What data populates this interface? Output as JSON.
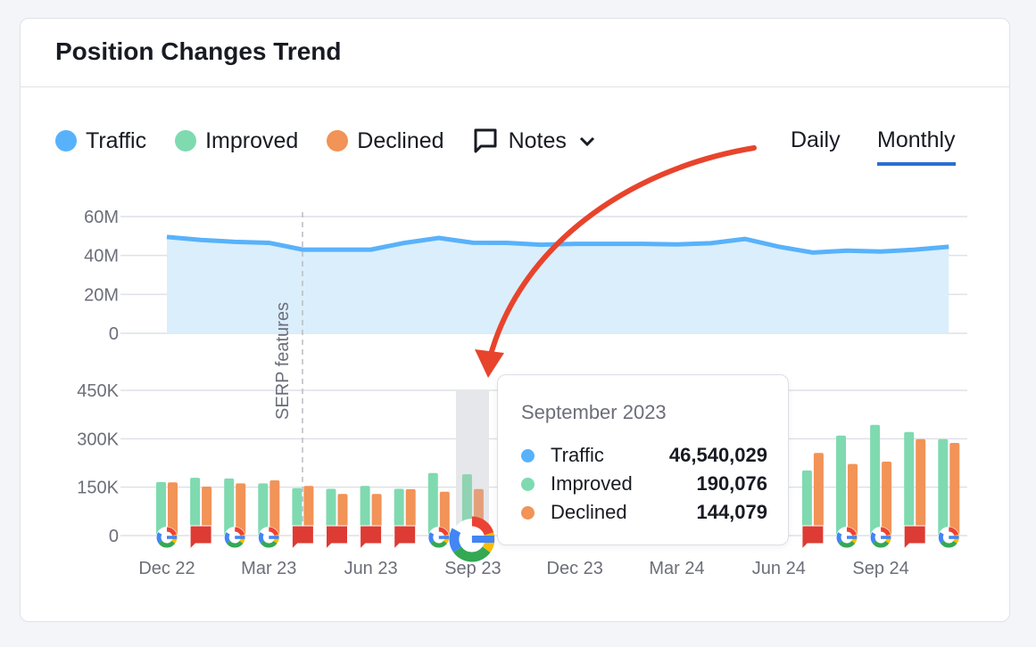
{
  "title": "Position Changes Trend",
  "legend": [
    {
      "label": "Traffic",
      "color": "#58b2fb"
    },
    {
      "label": "Improved",
      "color": "#7fdab0"
    },
    {
      "label": "Declined",
      "color": "#f29357"
    }
  ],
  "notes": {
    "label": "Notes",
    "icon": "comment-icon",
    "chevron": "chevron-down-icon"
  },
  "period_tabs": [
    {
      "label": "Daily",
      "active": false
    },
    {
      "label": "Monthly",
      "active": true
    }
  ],
  "annotation_arrow_color": "#e8442c",
  "chart_data": [
    {
      "type": "area",
      "series": [
        {
          "name": "Traffic",
          "color": "#58b2fb"
        }
      ],
      "x": [
        "Dec 22",
        "Jan 23",
        "Feb 23",
        "Mar 23",
        "Apr 23",
        "May 23",
        "Jun 23",
        "Jul 23",
        "Aug 23",
        "Sep 23",
        "Oct 23",
        "Nov 23",
        "Dec 23",
        "Jan 24",
        "Feb 24",
        "Mar 24",
        "Apr 24",
        "May 24",
        "Jun 24",
        "Jul 24",
        "Aug 24",
        "Sep 24",
        "Oct 24",
        "Nov 24"
      ],
      "values": [
        49.5,
        48,
        47,
        46.5,
        43,
        43,
        43,
        46.5,
        49,
        46.54,
        46.5,
        45.5,
        46,
        46,
        46,
        45.7,
        46.3,
        48.5,
        44.5,
        41.5,
        42.5,
        42,
        43,
        44.5
      ],
      "unit": "M",
      "ylim": [
        0,
        60
      ],
      "yticks": [
        "60M",
        "40M",
        "20M",
        "0"
      ],
      "grid": true
    },
    {
      "type": "bar",
      "x": [
        "Dec 22",
        "Jan 23",
        "Feb 23",
        "Mar 23",
        "Apr 23",
        "May 23",
        "Jun 23",
        "Jul 23",
        "Aug 23",
        "Sep 23",
        "Oct 23",
        "Nov 23",
        "Dec 23",
        "Jan 24",
        "Feb 24",
        "Mar 24",
        "Apr 24",
        "May 24",
        "Jun 24",
        "Jul 24",
        "Aug 24",
        "Sep 24",
        "Oct 24",
        "Nov 24"
      ],
      "series": [
        {
          "name": "Improved",
          "color": "#7fdab0",
          "values": [
            166000,
            179000,
            177000,
            162000,
            147000,
            145000,
            154000,
            145000,
            194000,
            190076,
            null,
            null,
            null,
            null,
            null,
            null,
            null,
            null,
            null,
            202000,
            310000,
            343000,
            321000,
            299000
          ]
        },
        {
          "name": "Declined",
          "color": "#f29357",
          "values": [
            165000,
            152000,
            162000,
            171000,
            154000,
            129000,
            129000,
            144000,
            136000,
            144079,
            null,
            null,
            null,
            null,
            null,
            null,
            null,
            null,
            null,
            256000,
            222000,
            229000,
            299000,
            287000
          ]
        }
      ],
      "markers": [
        "google",
        "note",
        "google",
        "google",
        "note",
        "note",
        "note",
        "note",
        "google",
        "google",
        null,
        null,
        null,
        null,
        null,
        null,
        null,
        null,
        null,
        "note",
        "google",
        "google",
        "note",
        "google"
      ],
      "ylim": [
        0,
        450000
      ],
      "yticks": [
        "450K",
        "300K",
        "150K",
        "0"
      ],
      "xticks": [
        "Dec 22",
        "Mar 23",
        "Jun 23",
        "Sep 23",
        "Dec 23",
        "Mar 24",
        "Jun 24",
        "Sep 24"
      ],
      "highlighted": "Sep 23",
      "grid": true
    }
  ],
  "annotation": {
    "label": "SERP features",
    "x": "Apr 23"
  },
  "tooltip": {
    "title": "September 2023",
    "rows": [
      {
        "label": "Traffic",
        "value": "46,540,029",
        "color": "#58b2fb"
      },
      {
        "label": "Improved",
        "value": "190,076",
        "color": "#7fdab0"
      },
      {
        "label": "Declined",
        "value": "144,079",
        "color": "#f29357"
      }
    ]
  }
}
